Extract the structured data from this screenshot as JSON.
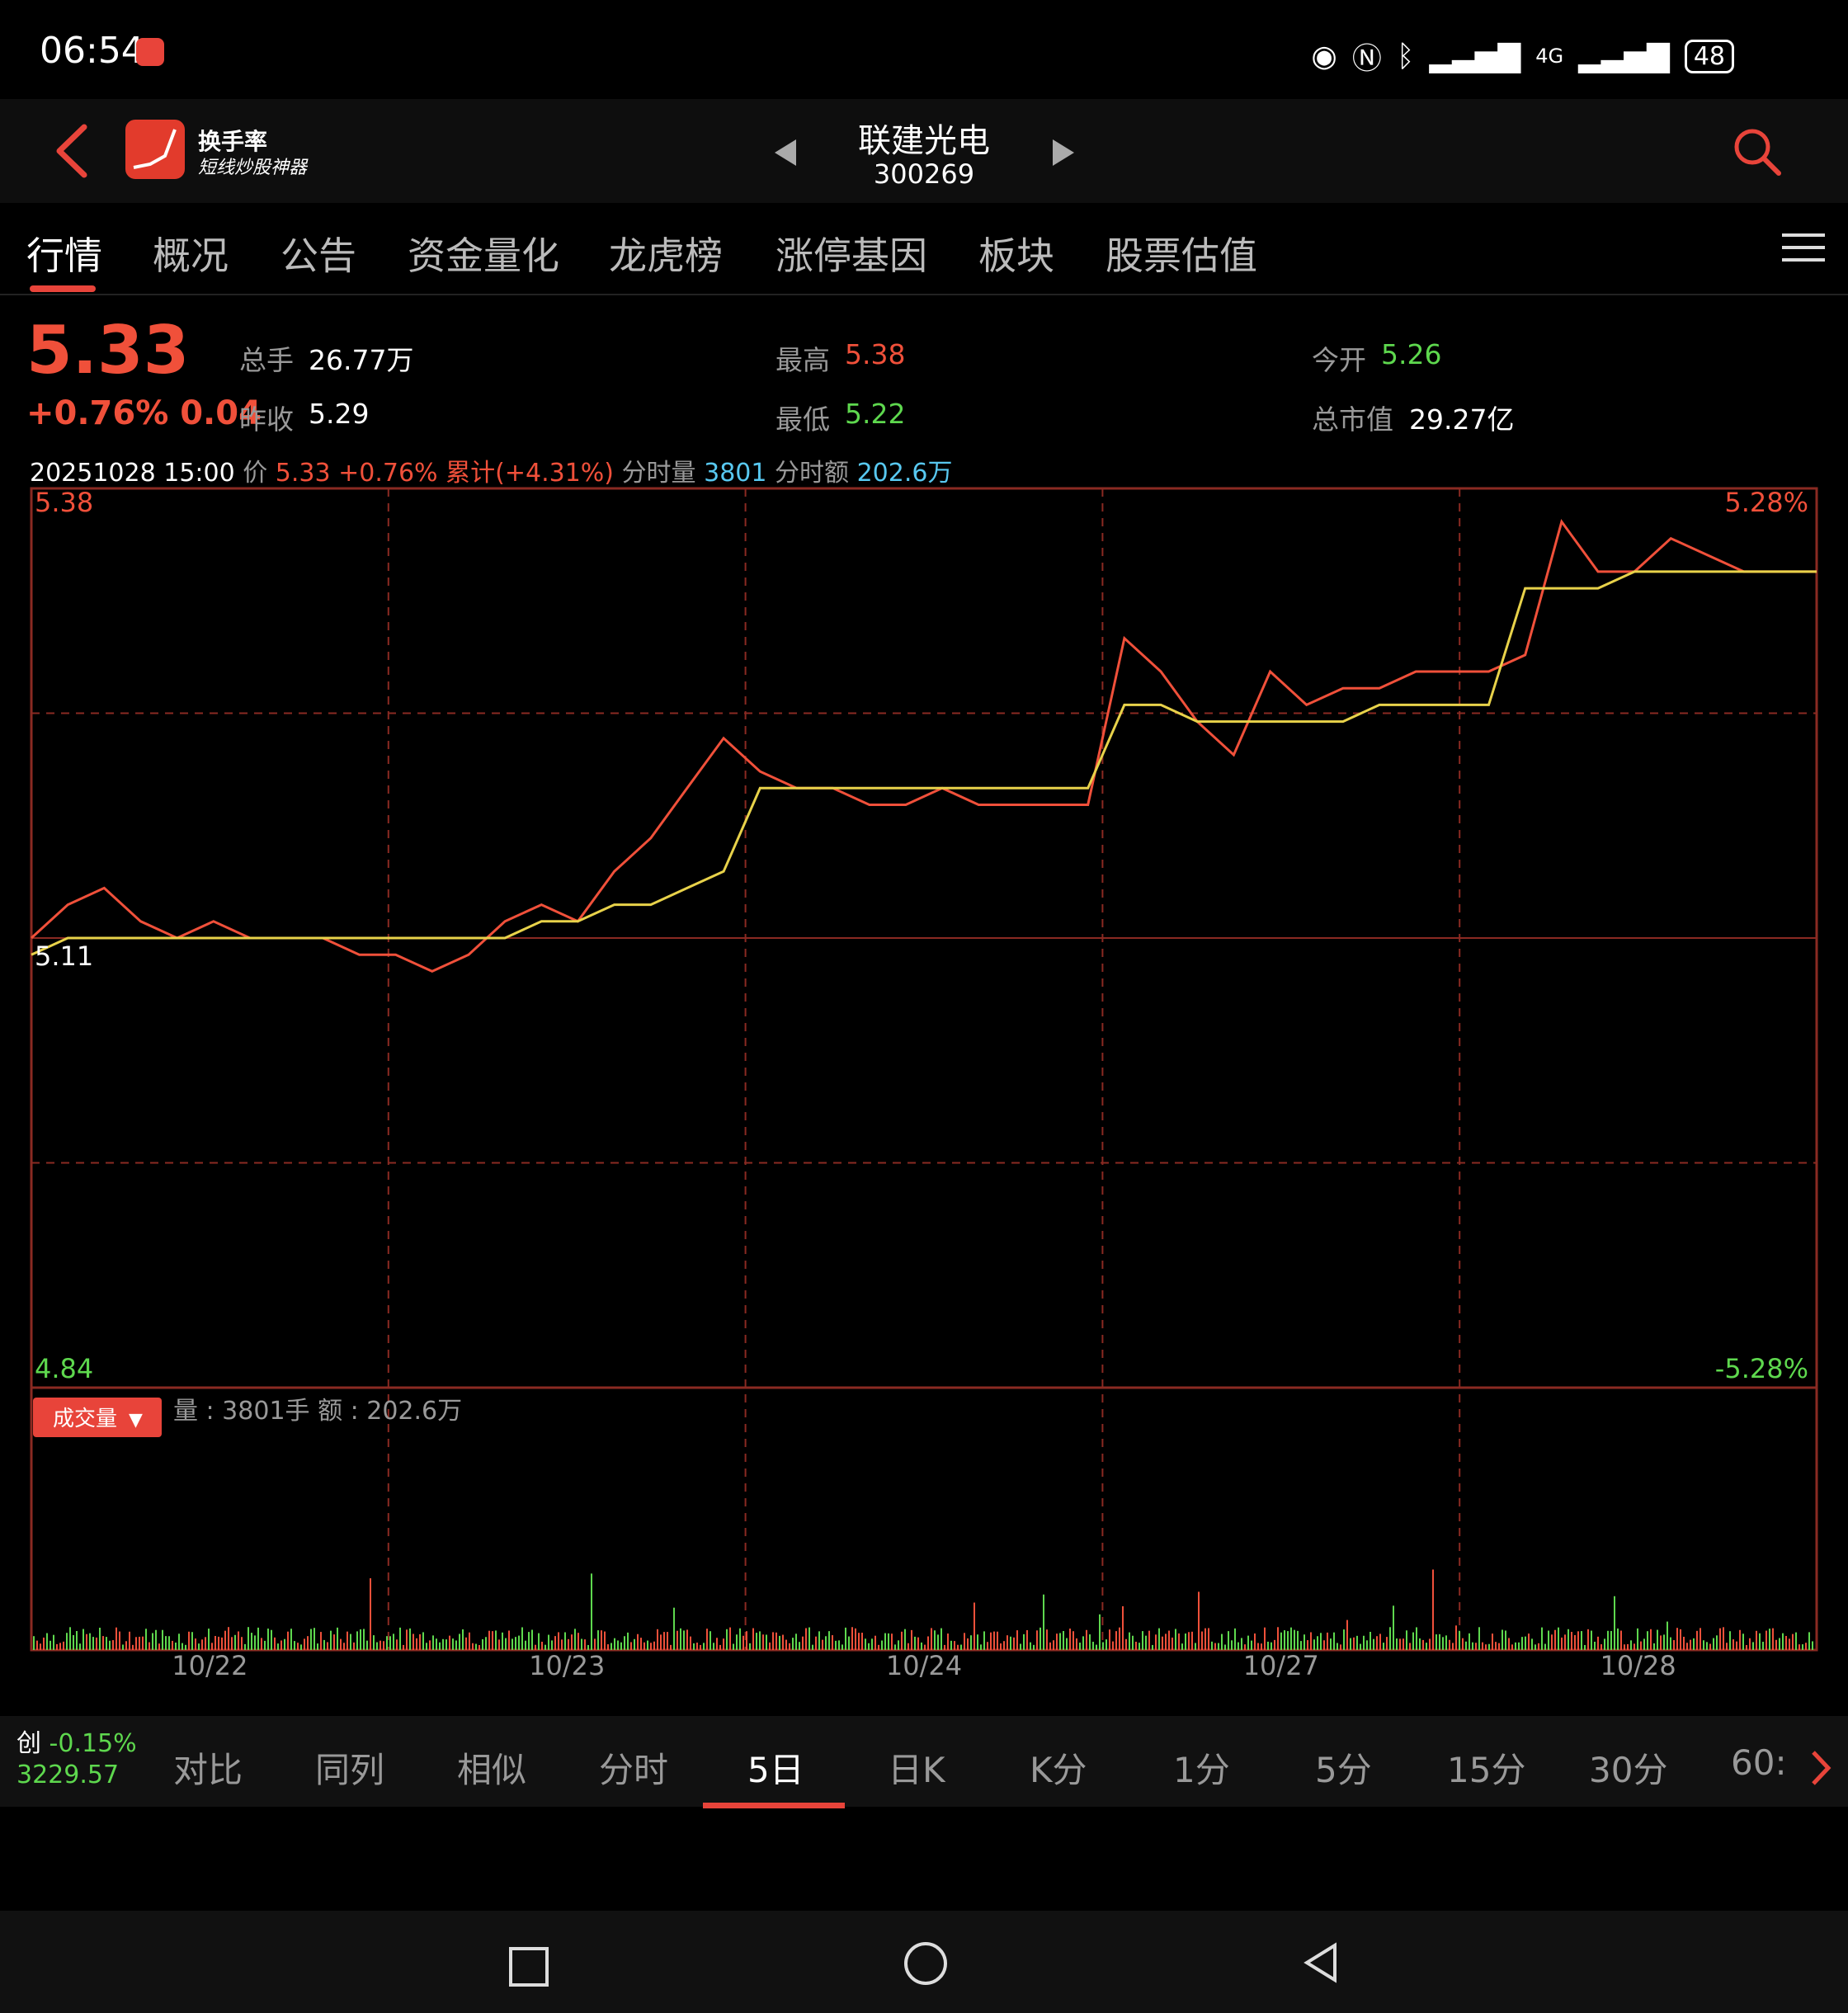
{
  "status_bar": {
    "time": "06:54",
    "network": "4G",
    "battery": "48"
  },
  "header": {
    "app_name": "换手率",
    "app_slogan": "短线炒股神器",
    "stock_name": "联建光电",
    "stock_code": "300269"
  },
  "tabs": [
    "行情",
    "概况",
    "公告",
    "资金量化",
    "龙虎榜",
    "涨停基因",
    "板块",
    "股票估值"
  ],
  "quote": {
    "price": "5.33",
    "change": "+0.76% 0.04",
    "total_hands_label": "总手",
    "total_hands": "26.77万",
    "high_label": "最高",
    "high": "5.38",
    "open_label": "今开",
    "open": "5.26",
    "prev_close_label": "昨收",
    "prev_close": "5.29",
    "low_label": "最低",
    "low": "5.22",
    "market_cap_label": "总市值",
    "market_cap": "29.27亿"
  },
  "info_line": {
    "datetime": "20251028 15:00",
    "price_label": "价",
    "price": "5.33",
    "pct": "+0.76%",
    "cum_label": "累计(",
    "cum": "+4.31%",
    "cum_close": ")",
    "vol_label": "分时量",
    "vol": "3801",
    "amt_label": "分时额",
    "amt": "202.6万"
  },
  "chart_data": {
    "type": "line",
    "ylim": [
      4.84,
      5.38
    ],
    "y_labels": {
      "top": "5.38",
      "bottom": "4.84",
      "mid": "5.11",
      "pct_top": "5.28%",
      "pct_bottom": "-5.28%"
    },
    "x_labels": [
      "10/22",
      "10/23",
      "10/24",
      "10/27",
      "10/28"
    ],
    "series": [
      {
        "values": [
          5.11,
          5.13,
          5.14,
          5.12,
          5.11,
          5.12,
          5.11,
          5.11,
          5.11,
          5.1,
          5.1,
          5.09,
          5.1,
          5.12,
          5.13,
          5.12,
          5.15,
          5.17,
          5.2,
          5.23,
          5.21,
          5.2,
          5.2,
          5.19,
          5.19,
          5.2,
          5.19,
          5.19,
          5.19,
          5.19,
          5.29,
          5.27,
          5.24,
          5.22,
          5.27,
          5.25,
          5.26,
          5.26,
          5.27,
          5.27,
          5.27,
          5.28,
          5.36,
          5.33,
          5.33,
          5.35,
          5.34,
          5.33,
          5.33,
          5.33
        ]
      },
      {
        "values": [
          5.1,
          5.11,
          5.11,
          5.11,
          5.11,
          5.11,
          5.11,
          5.11,
          5.11,
          5.11,
          5.11,
          5.11,
          5.11,
          5.11,
          5.12,
          5.12,
          5.13,
          5.13,
          5.14,
          5.15,
          5.2,
          5.2,
          5.2,
          5.2,
          5.2,
          5.2,
          5.2,
          5.2,
          5.2,
          5.2,
          5.25,
          5.25,
          5.24,
          5.24,
          5.24,
          5.24,
          5.24,
          5.25,
          5.25,
          5.25,
          5.25,
          5.32,
          5.32,
          5.32,
          5.33,
          5.33,
          5.33,
          5.33,
          5.33,
          5.33
        ]
      }
    ]
  },
  "volume": {
    "badge": "成交量",
    "summary": "量 : 3801手  额 : 202.6万"
  },
  "period_bar": {
    "index_name": "创",
    "index_pct": "-0.15%",
    "index_value": "3229.57",
    "tabs": [
      "对比",
      "同列",
      "相似",
      "分时",
      "5日",
      "日K",
      "K分",
      "1分",
      "5分",
      "15分",
      "30分",
      "60:"
    ]
  },
  "colors": {
    "up": "#f0503a",
    "down": "#5ed84e",
    "avg": "#e8d24a",
    "grid": "#8a2a22"
  }
}
